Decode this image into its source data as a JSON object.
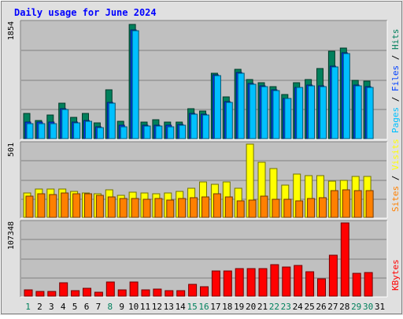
{
  "chart_data": {
    "type": "bar",
    "title": "Daily usage for June 2024",
    "categories": [
      "1",
      "2",
      "3",
      "4",
      "5",
      "6",
      "7",
      "8",
      "9",
      "10",
      "11",
      "12",
      "13",
      "14",
      "15",
      "16",
      "17",
      "18",
      "19",
      "20",
      "21",
      "22",
      "23",
      "24",
      "25",
      "26",
      "27",
      "28",
      "29",
      "30",
      "31"
    ],
    "weekend_days": [
      "1",
      "8",
      "15",
      "16",
      "22",
      "23",
      "29",
      "30"
    ],
    "panels": [
      {
        "id": "hits-files-pages",
        "ymax_label": "1854",
        "ymax": 1854,
        "side_labels": [
          {
            "text": "Pages",
            "color": "#00c0ff"
          },
          {
            "text": " / ",
            "color": "#000000"
          },
          {
            "text": "Files",
            "color": "#0040ff"
          },
          {
            "text": " / ",
            "color": "#000000"
          },
          {
            "text": "Hits",
            "color": "#00805c"
          }
        ],
        "series": [
          {
            "name": "Hits",
            "color": "#00805c",
            "values": [
              400,
              292,
              375,
              563,
              340,
              400,
              255,
              788,
              283,
              1825,
              265,
              303,
              263,
              267,
              480,
              445,
              1050,
              663,
              1105,
              950,
              895,
              838,
              705,
              895,
              950,
              1120,
              1405,
              1450,
              928,
              925
            ]
          },
          {
            "name": "Files",
            "color": "#0040ff",
            "values": [
              260,
              260,
              260,
              475,
              270,
              290,
              188,
              578,
              210,
              1740,
              215,
              215,
              210,
              225,
              405,
              385,
              1020,
              595,
              1060,
              880,
              840,
              780,
              648,
              825,
              855,
              840,
              1155,
              1375,
              860,
              830
            ]
          },
          {
            "name": "Pages",
            "color": "#00c0ff",
            "values": [
              245,
              245,
              245,
              465,
              255,
              275,
              175,
              565,
              195,
              1725,
              200,
              200,
              195,
              210,
              395,
              375,
              1010,
              585,
              1050,
              870,
              830,
              770,
              640,
              815,
              845,
              830,
              1145,
              1365,
              850,
              820
            ]
          }
        ]
      },
      {
        "id": "visits-sites",
        "ymax_label": "501",
        "ymax": 501,
        "side_labels": [
          {
            "text": "Sites",
            "color": "#ff8000"
          },
          {
            "text": " / ",
            "color": "#000000"
          },
          {
            "text": "Visits",
            "color": "#ffff00"
          }
        ],
        "series": [
          {
            "name": "Visits",
            "color": "#ffff00",
            "values": [
              168,
              196,
              192,
              196,
              179,
              169,
              162,
              186,
              152,
              172,
              166,
              159,
              168,
              179,
              200,
              240,
              228,
              243,
              199,
              501,
              376,
              336,
              219,
              297,
              283,
              287,
              248,
              255,
              280,
              281
            ]
          },
          {
            "name": "Sites",
            "color": "#ff8000",
            "values": [
              144,
              164,
              154,
              168,
              159,
              159,
              149,
              138,
              127,
              127,
              124,
              129,
              117,
              129,
              133,
              140,
              159,
              140,
              112,
              119,
              148,
              125,
              125,
              113,
              128,
              135,
              181,
              188,
              181,
              184
            ]
          }
        ]
      },
      {
        "id": "kbytes",
        "ymax_label": "107348",
        "ymax": 107348,
        "side_labels": [
          {
            "text": "KBytes",
            "color": "#ff0000"
          }
        ],
        "series": [
          {
            "name": "KBytes",
            "color": "#ff0000",
            "values": [
              8800,
              7100,
              7100,
              19200,
              8300,
              11100,
              6100,
              20900,
              9200,
              21300,
              9400,
              9900,
              8100,
              8400,
              17500,
              13300,
              37400,
              37300,
              40000,
              40000,
              40000,
              46600,
              42700,
              45200,
              36000,
              25700,
              60200,
              107348,
              33400,
              35000
            ]
          }
        ]
      }
    ],
    "colors": {
      "plot_background": "#c0c0c0",
      "outer_background": "#e0e0e0",
      "title_color": "#0000ff",
      "weekday_label": "#000000",
      "weekend_label": "#00805c"
    }
  }
}
